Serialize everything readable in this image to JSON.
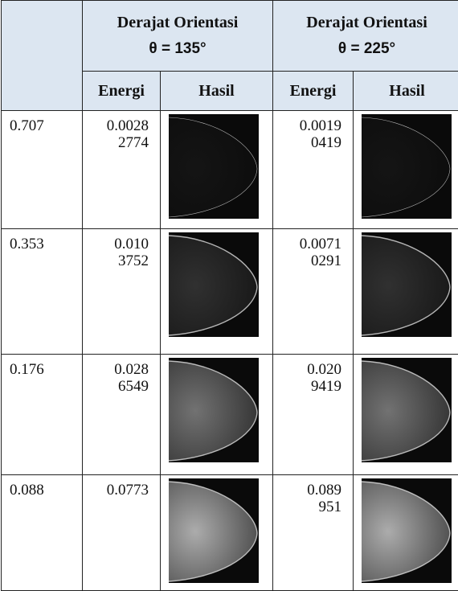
{
  "header": {
    "group_1_title": "Derajat Orientasi",
    "group_1_angle": "θ = 135°",
    "group_2_title": "Derajat Orientasi",
    "group_2_angle": "θ = 225°",
    "sub_headers": [
      "Energi",
      "Hasil",
      "Energi",
      "Hasil"
    ]
  },
  "rows": [
    {
      "scale": "0.707",
      "energy_135": [
        "0.0028",
        "2774"
      ],
      "energy_225": [
        "0.0019",
        "0419"
      ]
    },
    {
      "scale": "0.353",
      "energy_135": [
        "0.010",
        "3752"
      ],
      "energy_225": [
        "0.0071",
        "0291"
      ]
    },
    {
      "scale": "0.176",
      "energy_135": [
        "0.028",
        "6549"
      ],
      "energy_225": [
        "0.020",
        "9419"
      ]
    },
    {
      "scale": "0.088",
      "energy_135": [
        "0.0773"
      ],
      "energy_225": [
        "0.089",
        "951"
      ]
    }
  ]
}
